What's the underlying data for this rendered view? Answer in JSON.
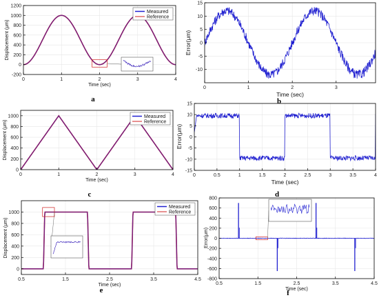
{
  "colors": {
    "measured": "#1f1fd0",
    "reference": "#d02020",
    "mix": "#6a1f8a",
    "axis": "#000000",
    "grid": "#e6e6e6"
  },
  "chart_data": [
    {
      "panel": "a",
      "type": "line",
      "xlabel": "Time (sec)",
      "ylabel": "Displacement (μm)",
      "xlim": [
        0,
        4
      ],
      "ylim": [
        -200,
        1200
      ],
      "xticks": [
        "0",
        "1",
        "2",
        "3",
        "4"
      ],
      "yticks": [
        "-200",
        "0",
        "200",
        "400",
        "600",
        "800",
        "1000",
        "1200"
      ],
      "legend": "top-right",
      "series": [
        {
          "name": "Measured",
          "x": [
            0,
            0.5,
            1,
            1.5,
            2,
            2.5,
            3,
            3.5,
            4
          ],
          "y": [
            0,
            500,
            1000,
            500,
            0,
            500,
            1000,
            500,
            0
          ]
        },
        {
          "name": "Reference",
          "x": [
            0,
            0.5,
            1,
            1.5,
            2,
            2.5,
            3,
            3.5,
            4
          ],
          "y": [
            0,
            500,
            1000,
            500,
            0,
            500,
            1000,
            500,
            0
          ]
        }
      ],
      "inset": true
    },
    {
      "panel": "b",
      "type": "line",
      "xlabel": "Time (sec)",
      "ylabel": "Error(μm)",
      "xlim": [
        0,
        3.9
      ],
      "ylim": [
        -15,
        15
      ],
      "xticks": [
        "0",
        "1",
        "2",
        "3"
      ],
      "yticks": [
        "-10",
        "-5",
        "0",
        "5",
        "10",
        "15"
      ],
      "series": [
        {
          "x": [
            0,
            0.5,
            1,
            1.5,
            2,
            2.5,
            3,
            3.5,
            3.9
          ],
          "y": [
            0,
            12,
            0,
            -12,
            0,
            12,
            0,
            -12,
            -5
          ]
        }
      ]
    },
    {
      "panel": "c",
      "type": "line",
      "xlabel": "Time (sec)",
      "ylabel": "Displacement (μm)",
      "xlim": [
        0,
        4
      ],
      "ylim": [
        0,
        1100
      ],
      "xticks": [
        "0",
        "1",
        "2",
        "3",
        "4"
      ],
      "yticks": [
        "0",
        "200",
        "400",
        "600",
        "800",
        "1000"
      ],
      "legend": "top-right",
      "series": [
        {
          "name": "Measured",
          "x": [
            0,
            1,
            2,
            3,
            4
          ],
          "y": [
            0,
            1000,
            0,
            1000,
            0
          ]
        },
        {
          "name": "Reference",
          "x": [
            0,
            1,
            2,
            3,
            4
          ],
          "y": [
            0,
            1000,
            0,
            1000,
            0
          ]
        }
      ]
    },
    {
      "panel": "d",
      "type": "line",
      "xlabel": "Time (sec)",
      "ylabel": "Error(μm)",
      "xlim": [
        0,
        4
      ],
      "ylim": [
        -15,
        15
      ],
      "xticks": [
        "0",
        "0.5",
        "1",
        "1.5",
        "2",
        "2.5",
        "3",
        "3.5",
        "4"
      ],
      "yticks": [
        "-15",
        "-10",
        "-5",
        "0",
        "5",
        "10",
        "15"
      ],
      "series": [
        {
          "x": [
            0,
            1,
            1.05,
            2,
            2.05,
            3,
            3.05,
            4
          ],
          "y": [
            10,
            10,
            -10,
            -10,
            10,
            10,
            -10,
            -10
          ]
        }
      ]
    },
    {
      "panel": "e",
      "type": "line",
      "xlabel": "Time (sec)",
      "ylabel": "Displacement (μm)",
      "xlim": [
        0.5,
        4.5
      ],
      "ylim": [
        -100,
        1200
      ],
      "xticks": [
        "0.5",
        "1.5",
        "2.5",
        "3.5",
        "4.5"
      ],
      "yticks": [
        "0",
        "200",
        "400",
        "600",
        "800",
        "1000"
      ],
      "legend": "top-right",
      "series": [
        {
          "name": "Measured",
          "x": [
            0.5,
            1,
            1.05,
            2,
            2.05,
            3,
            3.05,
            4,
            4.05,
            4.5
          ],
          "y": [
            0,
            0,
            1000,
            1000,
            0,
            0,
            1000,
            1000,
            0,
            0
          ]
        },
        {
          "name": "Reference",
          "x": [
            0.5,
            1,
            1.05,
            2,
            2.05,
            3,
            3.05,
            4,
            4.05,
            4.5
          ],
          "y": [
            0,
            0,
            1000,
            1000,
            0,
            0,
            1000,
            1000,
            0,
            0
          ]
        }
      ],
      "inset": true
    },
    {
      "panel": "f",
      "type": "line",
      "xlabel": "Time (sec)",
      "ylabel": "Error(μm)",
      "xlim": [
        0.5,
        4.5
      ],
      "ylim": [
        -800,
        800
      ],
      "xticks": [
        "0.5",
        "1.5",
        "2.5",
        "3.5",
        "4.5"
      ],
      "yticks": [
        "-800",
        "-600",
        "-400",
        "-200",
        "0",
        "200",
        "400",
        "600",
        "800"
      ],
      "series": [
        {
          "x": [
            1,
            2,
            3,
            4
          ],
          "y": [
            700,
            -650,
            700,
            -650
          ]
        }
      ],
      "inset": true
    }
  ]
}
